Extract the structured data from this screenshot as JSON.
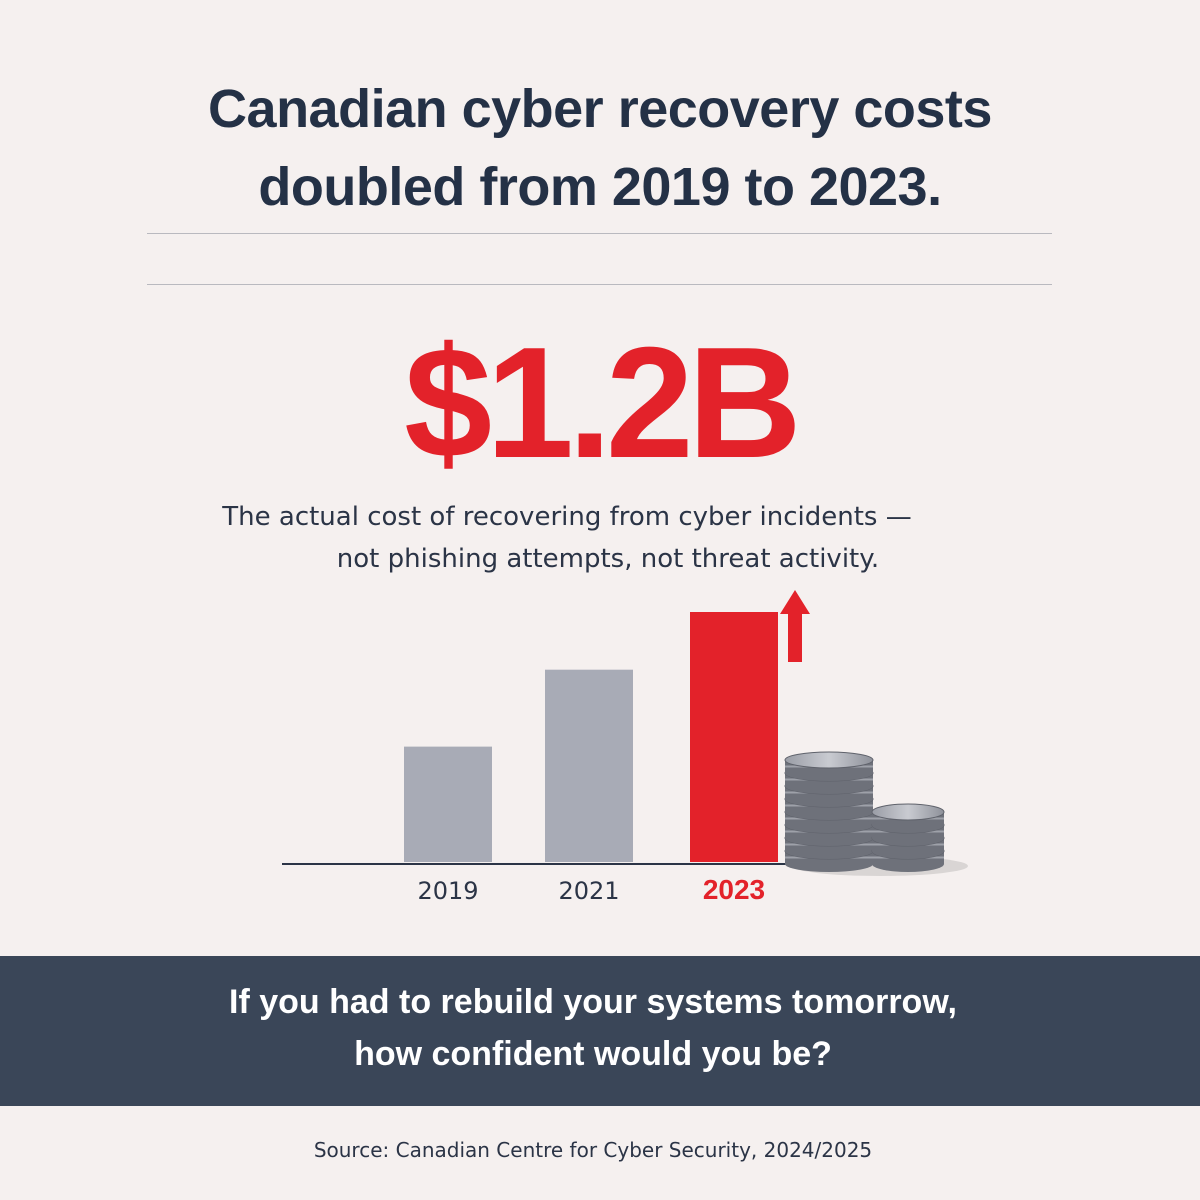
{
  "headline": {
    "line1": "Canadian cyber recovery costs",
    "line2": "doubled from 2019 to 2023."
  },
  "stat": {
    "value": "$1.2B",
    "description_line1": "The actual cost of recovering from cyber incidents —",
    "description_line2": "not phishing attempts, not threat activity."
  },
  "chart_data": {
    "type": "bar",
    "title": "",
    "xlabel": "",
    "ylabel": "",
    "categories": [
      "2019",
      "2021",
      "2023"
    ],
    "values": [
      0.6,
      1.0,
      1.3
    ],
    "value_unit": "relative height (2021 = 1.0); axis unlabeled",
    "ylim": [
      0,
      1.3
    ],
    "grid": false,
    "highlight_category": "2023",
    "annotations": [
      "upward arrow above 2023 bar",
      "stacked coins icon beside 2023 bar"
    ]
  },
  "cta": {
    "line1": "If you had to rebuild your systems tomorrow,",
    "line2": "how confident would you be?"
  },
  "source": "Source: Canadian Centre for Cyber Security, 2024/2025",
  "colors": {
    "background": "#f5f0ef",
    "navy": "#243146",
    "accent_red": "#e3222a",
    "bar_gray": "#a8abb6",
    "banner": "#3a4658",
    "rule": "#b9b9bf"
  }
}
